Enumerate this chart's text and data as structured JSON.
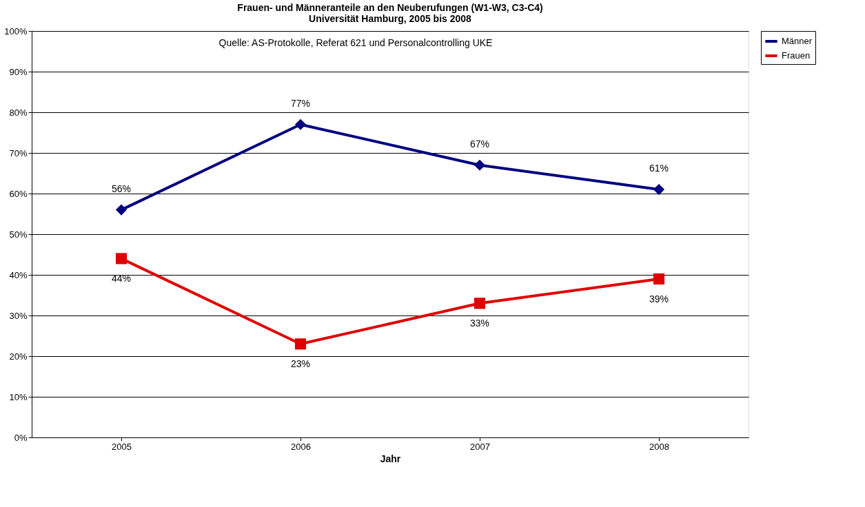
{
  "chart_data": {
    "type": "line",
    "title": "Frauen- und Männeranteile an den Neuberufungen (W1-W3, C3-C4)\nUniversität Hamburg, 2005 bis 2008",
    "xlabel": "Jahr",
    "annotations": [
      "Quelle: AS-Protokolle, Referat 621 und Personalcontrolling UKE"
    ],
    "categories": [
      "2005",
      "2006",
      "2007",
      "2008"
    ],
    "series": [
      {
        "name": "Männer",
        "color": "#000080",
        "marker": "diamond",
        "values": [
          56,
          77,
          67,
          61
        ],
        "value_labels": [
          "56%",
          "77%",
          "67%",
          "61%"
        ]
      },
      {
        "name": "Frauen",
        "color": "#e00000",
        "marker": "square",
        "values": [
          44,
          23,
          33,
          39
        ],
        "value_labels": [
          "44%",
          "23%",
          "33%",
          "39%"
        ]
      }
    ],
    "ylim": [
      0,
      100
    ],
    "yticks": [
      {
        "value": 0,
        "label": "0%"
      },
      {
        "value": 10,
        "label": "10%"
      },
      {
        "value": 20,
        "label": "20%"
      },
      {
        "value": 30,
        "label": "30%"
      },
      {
        "value": 40,
        "label": "40%"
      },
      {
        "value": 50,
        "label": "50%"
      },
      {
        "value": 60,
        "label": "60%"
      },
      {
        "value": 70,
        "label": "70%"
      },
      {
        "value": 80,
        "label": "80%"
      },
      {
        "value": 90,
        "label": "90%"
      },
      {
        "value": 100,
        "label": "100%"
      }
    ],
    "grid": "y",
    "legend": "right",
    "line_style": "solid"
  }
}
